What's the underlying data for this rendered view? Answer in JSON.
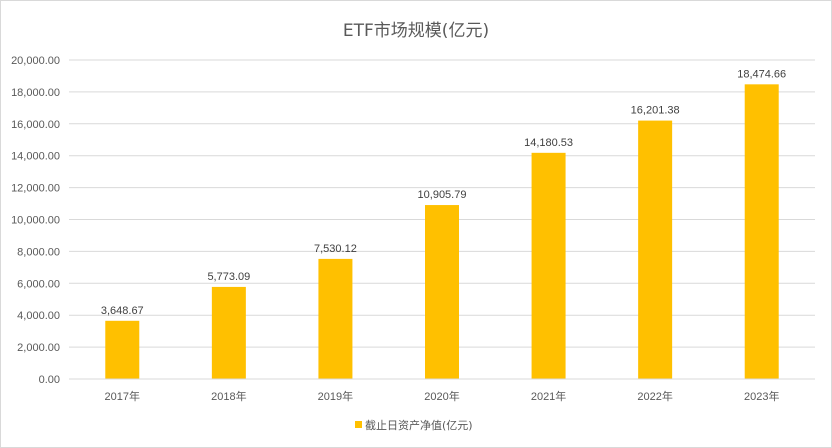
{
  "chart_data": {
    "type": "bar",
    "title": "ETF市场规模(亿元)",
    "categories": [
      "2017年",
      "2018年",
      "2019年",
      "2020年",
      "2021年",
      "2022年",
      "2023年"
    ],
    "series": [
      {
        "name": "截止日资产净值(亿元)",
        "values": [
          3648.67,
          5773.09,
          7530.12,
          10905.79,
          14180.53,
          16201.38,
          18474.66
        ],
        "labels": [
          "3,648.67",
          "5,773.09",
          "7,530.12",
          "10,905.79",
          "14,180.53",
          "16,201.38",
          "18,474.66"
        ],
        "color": "#FFC000"
      }
    ],
    "y_ticks": [
      "0.00",
      "2,000.00",
      "4,000.00",
      "6,000.00",
      "8,000.00",
      "10,000.00",
      "12,000.00",
      "14,000.00",
      "16,000.00",
      "18,000.00",
      "20,000.00"
    ],
    "ylim": [
      0,
      20000
    ],
    "xlabel": "",
    "ylabel": "",
    "grid": true,
    "legend_position": "bottom"
  }
}
